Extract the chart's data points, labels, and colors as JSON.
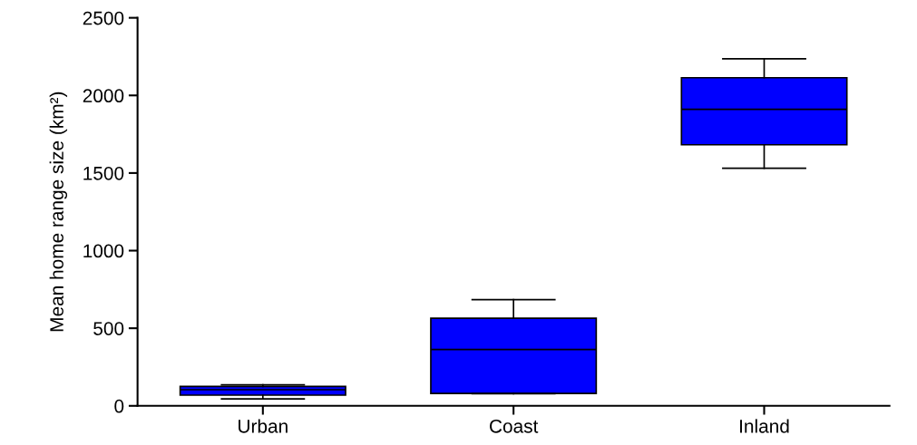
{
  "chart_data": {
    "type": "box",
    "ylabel": "Mean home range size (km²)",
    "categories": [
      "Urban",
      "Coast",
      "Inland"
    ],
    "color": "#0000ff",
    "ylim": [
      0,
      2500
    ],
    "yticks": [
      0,
      500,
      1000,
      1500,
      2000,
      2500
    ],
    "grid": false,
    "boxes": [
      {
        "low": 45,
        "q1": 69,
        "median": 104,
        "q3": 125,
        "high": 135
      },
      {
        "low": 78,
        "q1": 80,
        "median": 363,
        "q3": 564,
        "high": 684
      },
      {
        "low": 1531,
        "q1": 1682,
        "median": 1910,
        "q3": 2114,
        "high": 2236
      }
    ]
  }
}
